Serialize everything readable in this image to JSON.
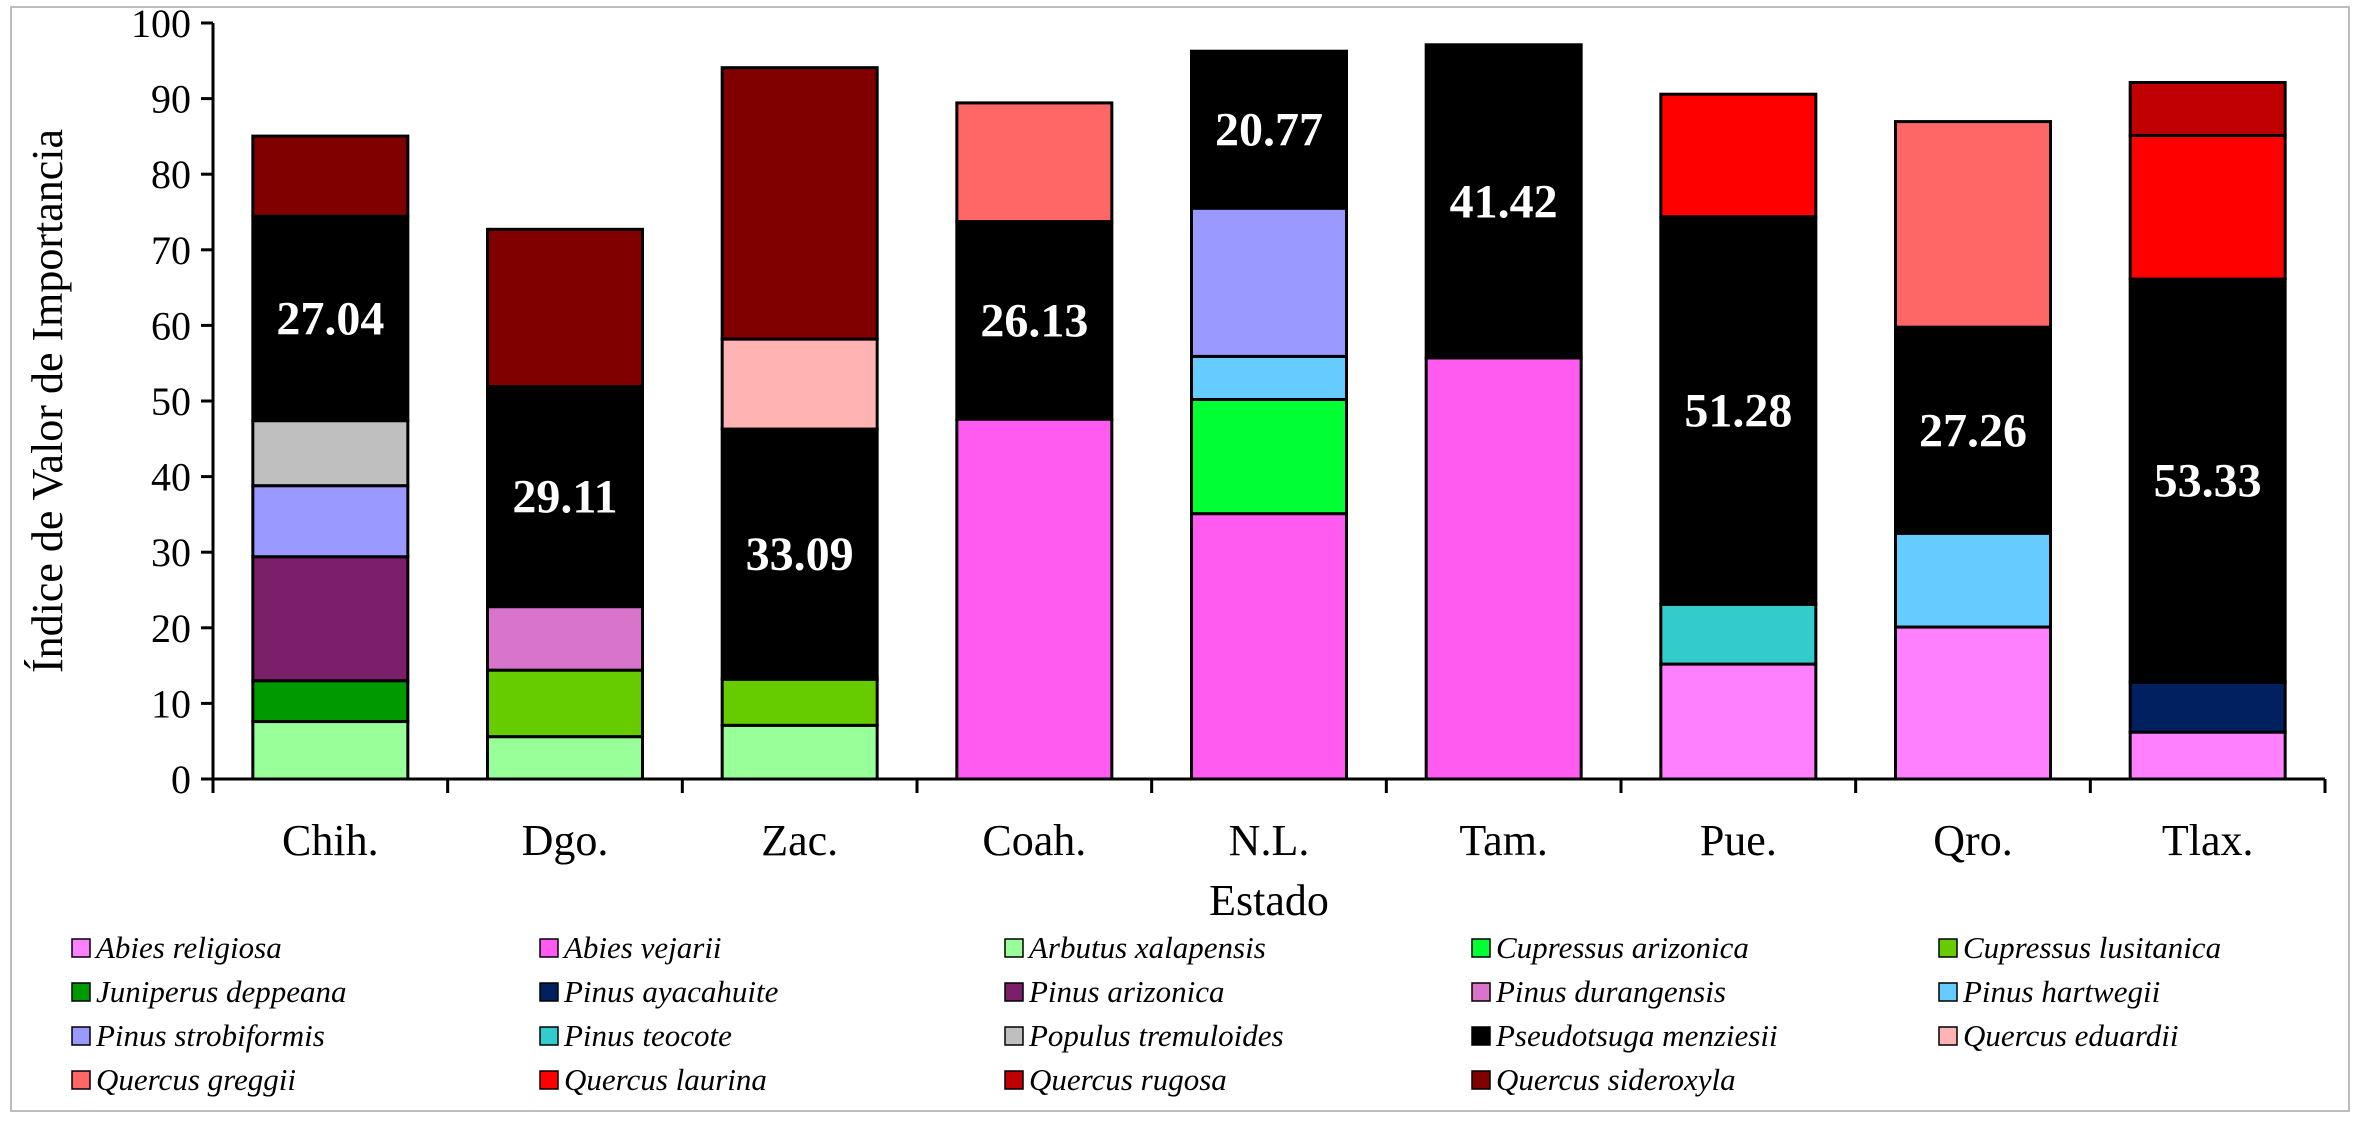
{
  "chart_data": {
    "type": "bar",
    "stacked": true,
    "title": "",
    "xlabel": "Estado",
    "ylabel": "Índice de Valor de Importancia",
    "ylim": [
      0,
      100
    ],
    "yticks": [
      "0",
      "10",
      "20",
      "30",
      "40",
      "50",
      "60",
      "70",
      "80",
      "90",
      "100"
    ],
    "categories": [
      "Chih.",
      "Dgo.",
      "Zac.",
      "Coah.",
      "N.L.",
      "Tam.",
      "Pue.",
      "Qro.",
      "Tlax."
    ],
    "series": [
      {
        "name": "Abies religiosa",
        "color": "#FF80FF",
        "values": [
          0,
          0,
          0,
          0,
          0,
          0,
          15.2,
          20.1,
          6.2
        ]
      },
      {
        "name": "Abies vejarii",
        "color": "#FF5BF0",
        "values": [
          0,
          0,
          0,
          47.6,
          35.1,
          55.7,
          0,
          0,
          0
        ]
      },
      {
        "name": "Arbutus xalapensis",
        "color": "#99FF99",
        "values": [
          7.6,
          5.6,
          7.1,
          0,
          0,
          0,
          0,
          0,
          0
        ]
      },
      {
        "name": "Cupressus arizonica",
        "color": "#00FF33",
        "values": [
          0,
          0,
          0,
          0,
          15.1,
          0,
          0,
          0,
          0
        ]
      },
      {
        "name": "Cupressus lusitanica",
        "color": "#66CC00",
        "values": [
          0,
          8.8,
          6.1,
          0,
          0,
          0,
          0,
          0,
          0
        ]
      },
      {
        "name": "Juniperus deppeana",
        "color": "#009900",
        "values": [
          5.4,
          0,
          0,
          0,
          0,
          0,
          0,
          0,
          0
        ]
      },
      {
        "name": "Pinus ayacahuite",
        "color": "#002060",
        "values": [
          0,
          0,
          0,
          0,
          0,
          0,
          0,
          0,
          6.6
        ]
      },
      {
        "name": "Pinus arizonica",
        "color": "#7B1F6A",
        "values": [
          16.4,
          0,
          0,
          0,
          0,
          0,
          0,
          0,
          0
        ]
      },
      {
        "name": "Pinus durangensis",
        "color": "#D974CC",
        "values": [
          0,
          8.4,
          0,
          0,
          0,
          0,
          0,
          0,
          0
        ]
      },
      {
        "name": "Pinus hartwegii",
        "color": "#66CCFF",
        "values": [
          0,
          0,
          0,
          0,
          5.7,
          0,
          0,
          12.4,
          0
        ]
      },
      {
        "name": "Pinus strobiformis",
        "color": "#9999FF",
        "values": [
          9.4,
          0,
          0,
          0,
          19.6,
          0,
          0,
          0,
          0
        ]
      },
      {
        "name": "Pinus teocote",
        "color": "#33CCCC",
        "values": [
          0,
          0,
          0,
          0,
          0,
          0,
          7.9,
          0,
          0
        ]
      },
      {
        "name": "Populus tremuloides",
        "color": "#BFBFBF",
        "values": [
          8.6,
          0,
          0,
          0,
          0,
          0,
          0,
          0,
          0
        ]
      },
      {
        "name": "Pseudotsuga menziesii",
        "color": "#000000",
        "values": [
          27.04,
          29.11,
          33.09,
          26.13,
          20.77,
          41.42,
          51.28,
          27.26,
          53.33
        ]
      },
      {
        "name": "Quercus eduardii",
        "color": "#FFB3B3",
        "values": [
          0,
          0,
          11.9,
          0,
          0,
          0,
          0,
          0,
          0
        ]
      },
      {
        "name": "Quercus greggii",
        "color": "#FF6666",
        "values": [
          0,
          0,
          0,
          15.7,
          0,
          0,
          0,
          27.2,
          0
        ]
      },
      {
        "name": "Quercus laurina",
        "color": "#FF0000",
        "values": [
          0,
          0,
          0,
          0,
          0,
          0,
          16.2,
          0,
          19.0
        ]
      },
      {
        "name": "Quercus rugosa",
        "color": "#C00000",
        "values": [
          0,
          0,
          0,
          0,
          0,
          0,
          0,
          0,
          7.0
        ]
      },
      {
        "name": "Quercus sideroxyla",
        "color": "#800000",
        "values": [
          10.6,
          20.8,
          35.9,
          0,
          0,
          0,
          0,
          0,
          0
        ]
      }
    ],
    "data_labels": {
      "series": "Pseudotsuga menziesii",
      "values": [
        "27.04",
        "29.11",
        "33.09",
        "26.13",
        "20.77",
        "41.42",
        "51.28",
        "27.26",
        "53.33"
      ]
    },
    "legend_position": "bottom"
  }
}
